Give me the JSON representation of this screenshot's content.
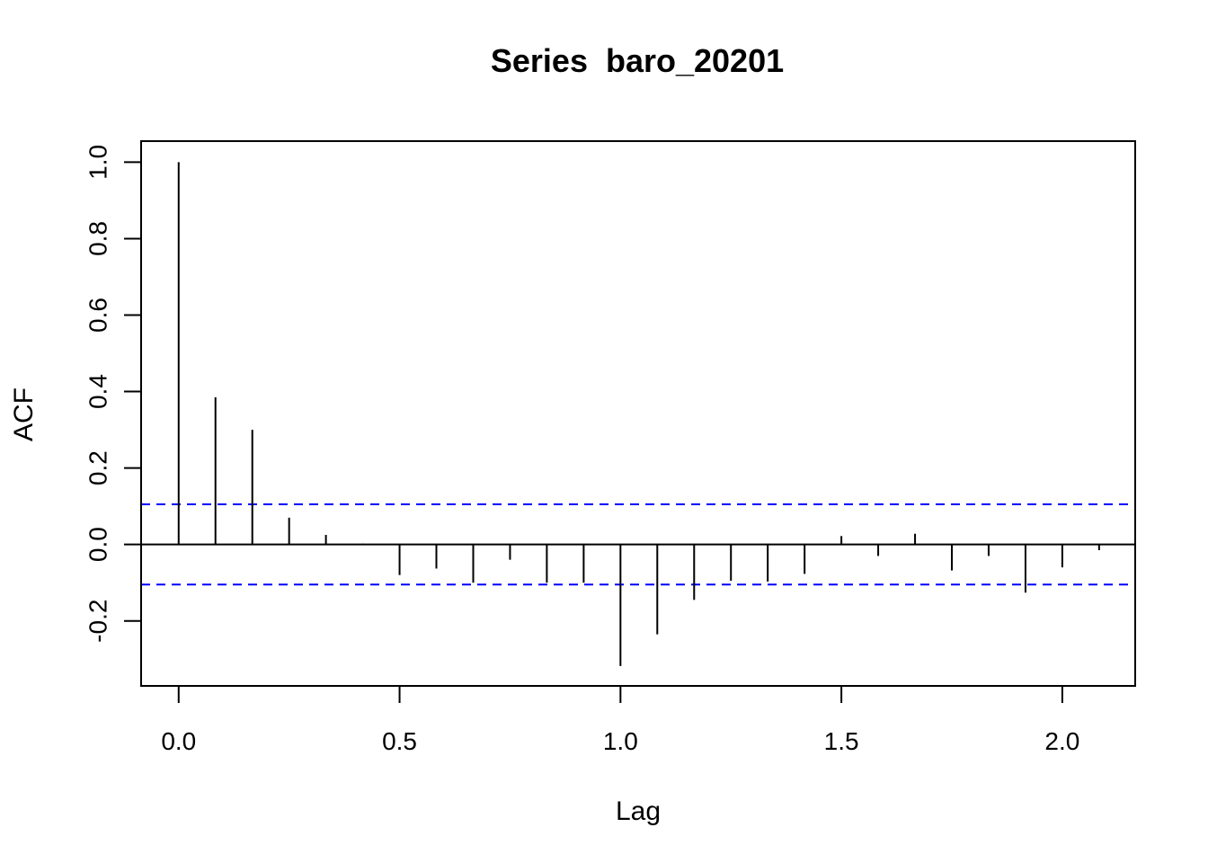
{
  "chart_data": {
    "type": "bar",
    "title": "Series  baro_20201",
    "xlabel": "Lag",
    "ylabel": "ACF",
    "xlim": [
      -0.085,
      2.165
    ],
    "ylim": [
      -0.37,
      1.055
    ],
    "x_ticks": [
      0.0,
      0.5,
      1.0,
      1.5,
      2.0
    ],
    "x_tick_labels": [
      "0.0",
      "0.5",
      "1.0",
      "1.5",
      "2.0"
    ],
    "y_ticks": [
      -0.2,
      0.0,
      0.2,
      0.4,
      0.6,
      0.8,
      1.0
    ],
    "y_tick_labels": [
      "-0.2",
      "0.0",
      "0.2",
      "0.4",
      "0.6",
      "0.8",
      "1.0"
    ],
    "confidence_bound": 0.105,
    "confidence_color": "#0000ff",
    "bar_color": "#000000",
    "grid": false,
    "series": [
      {
        "lag": [
          0.0,
          0.0833,
          0.1667,
          0.25,
          0.3333,
          0.4167,
          0.5,
          0.5833,
          0.6667,
          0.75,
          0.8333,
          0.9167,
          1.0,
          1.0833,
          1.1667,
          1.25,
          1.3333,
          1.4167,
          1.5,
          1.5833,
          1.6667,
          1.75,
          1.8333,
          1.9167,
          2.0,
          2.0833
        ],
        "acf": [
          1.0,
          0.385,
          0.3,
          0.07,
          0.025,
          0.002,
          -0.08,
          -0.063,
          -0.1,
          -0.04,
          -0.1,
          -0.1,
          -0.318,
          -0.235,
          -0.145,
          -0.095,
          -0.097,
          -0.077,
          0.022,
          -0.03,
          0.028,
          -0.068,
          -0.03,
          -0.126,
          -0.06,
          -0.015
        ]
      }
    ]
  }
}
